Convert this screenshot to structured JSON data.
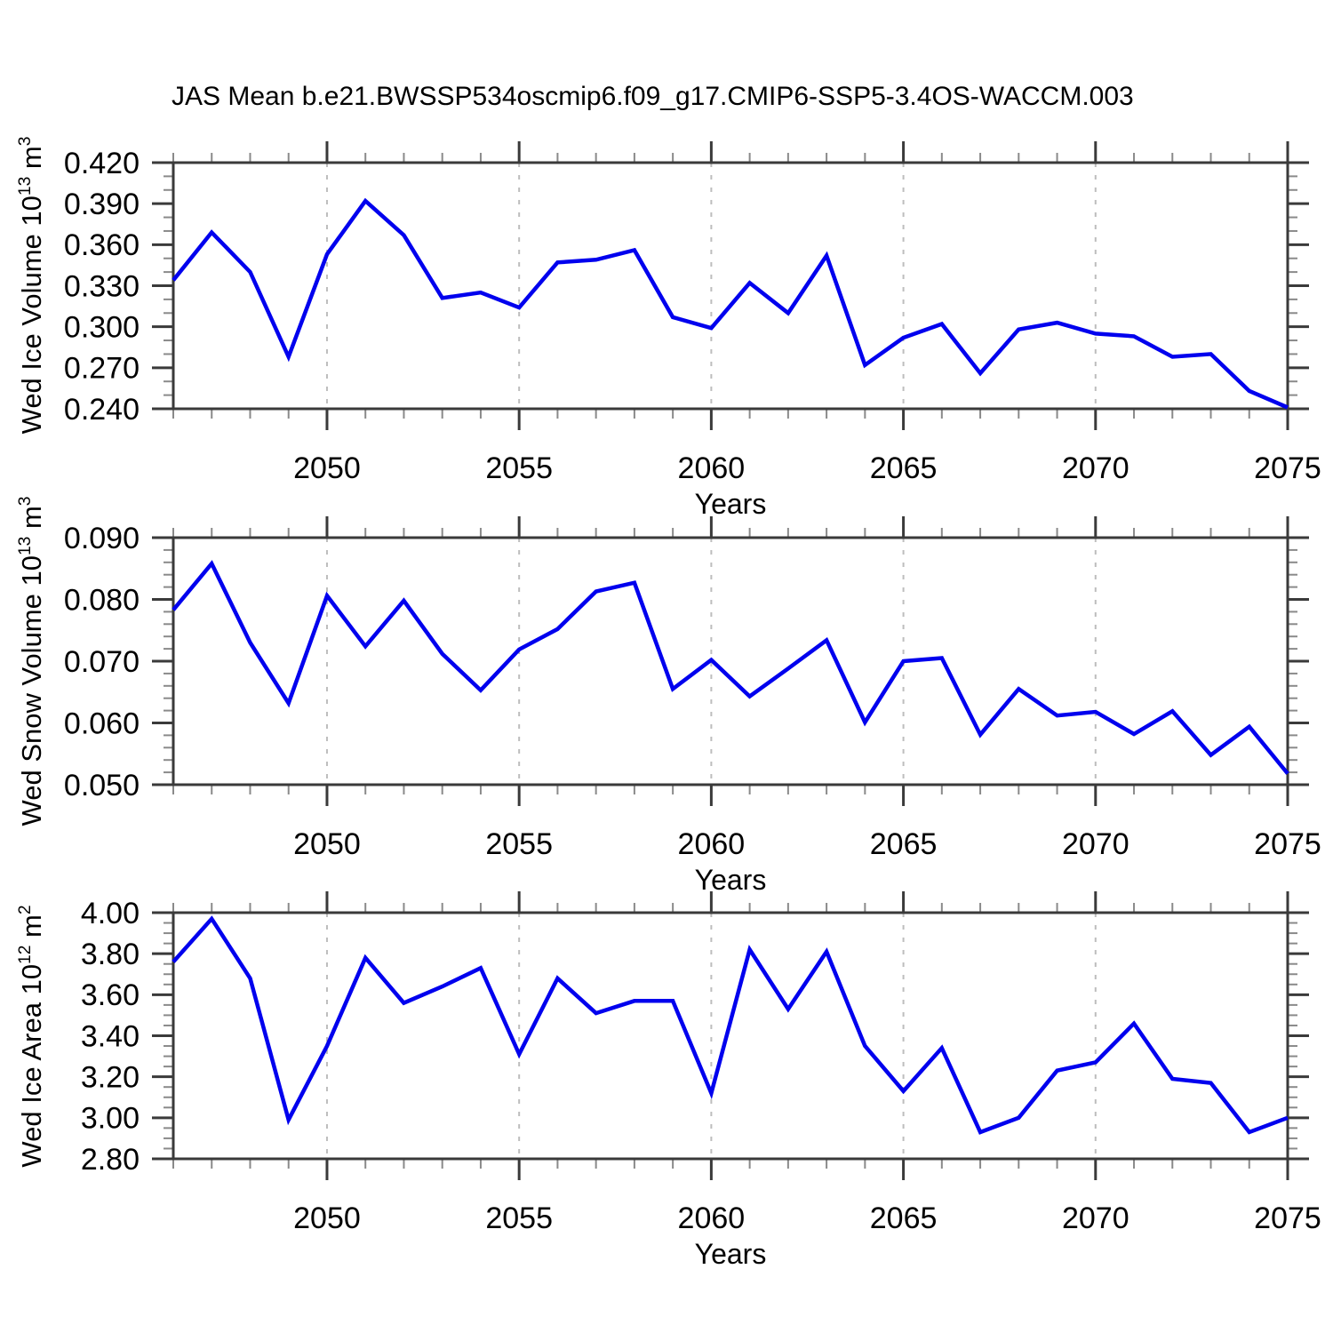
{
  "title": "JAS Mean b.e21.BWSSP534oscmip6.f09_g17.CMIP6-SSP5-3.4OS-WACCM.003",
  "colors": {
    "line": "#0000ee",
    "grid": "#bdbdbd",
    "axis": "#3a3a3a",
    "minor_tick": "#8a8a8a",
    "text": "#000000",
    "background": "#ffffff"
  },
  "chart_data": [
    {
      "type": "line",
      "panel": "ice-volume",
      "ylabel_text": "Wed Ice Volume 10^13 m^3",
      "ylabel_segments": [
        {
          "t": "Wed Ice Volume 10"
        },
        {
          "t": "13",
          "sup": true
        },
        {
          "t": " m"
        },
        {
          "t": "3",
          "sup": true
        }
      ],
      "xlabel": "Years",
      "x_range": [
        2046,
        2075
      ],
      "x": [
        2046,
        2047,
        2048,
        2049,
        2050,
        2051,
        2052,
        2053,
        2054,
        2055,
        2056,
        2057,
        2058,
        2059,
        2060,
        2061,
        2062,
        2063,
        2064,
        2065,
        2066,
        2067,
        2068,
        2069,
        2070,
        2071,
        2072,
        2073,
        2074,
        2075
      ],
      "values": [
        0.334,
        0.369,
        0.34,
        0.278,
        0.353,
        0.392,
        0.367,
        0.321,
        0.325,
        0.314,
        0.347,
        0.349,
        0.356,
        0.307,
        0.299,
        0.332,
        0.31,
        0.352,
        0.272,
        0.292,
        0.302,
        0.266,
        0.298,
        0.303,
        0.295,
        0.293,
        0.278,
        0.28,
        0.253,
        0.241
      ],
      "ylim": [
        0.24,
        0.42
      ],
      "yticks": [
        0.24,
        0.27,
        0.3,
        0.33,
        0.36,
        0.39,
        0.42
      ],
      "ytick_labels": [
        "0.240",
        "0.270",
        "0.300",
        "0.330",
        "0.360",
        "0.390",
        "0.420"
      ],
      "y_minor_step": 0.01,
      "xticks": [
        2050,
        2055,
        2060,
        2065,
        2070,
        2075
      ],
      "xtick_labels": [
        "2050",
        "2055",
        "2060",
        "2065",
        "2070",
        "2075"
      ],
      "grid_x": [
        2050,
        2055,
        2060,
        2065,
        2070
      ],
      "grid": "vertical-dashed",
      "legend": "none"
    },
    {
      "type": "line",
      "panel": "snow-volume",
      "ylabel_text": "Wed Snow Volume 10^13 m^3",
      "ylabel_segments": [
        {
          "t": "Wed Snow Volume 10"
        },
        {
          "t": "13",
          "sup": true
        },
        {
          "t": " m"
        },
        {
          "t": "3",
          "sup": true
        }
      ],
      "xlabel": "Years",
      "x_range": [
        2046,
        2075
      ],
      "x": [
        2046,
        2047,
        2048,
        2049,
        2050,
        2051,
        2052,
        2053,
        2054,
        2055,
        2056,
        2057,
        2058,
        2059,
        2060,
        2061,
        2062,
        2063,
        2064,
        2065,
        2066,
        2067,
        2068,
        2069,
        2070,
        2071,
        2072,
        2073,
        2074,
        2075
      ],
      "values": [
        0.0783,
        0.0858,
        0.073,
        0.0632,
        0.0806,
        0.0724,
        0.0798,
        0.0712,
        0.0653,
        0.0719,
        0.0752,
        0.0813,
        0.0827,
        0.0655,
        0.0702,
        0.0643,
        0.0688,
        0.0734,
        0.0601,
        0.07,
        0.0705,
        0.0581,
        0.0655,
        0.0612,
        0.0618,
        0.0582,
        0.0619,
        0.0548,
        0.0594,
        0.0518
      ],
      "ylim": [
        0.05,
        0.09
      ],
      "yticks": [
        0.05,
        0.06,
        0.07,
        0.08,
        0.09
      ],
      "ytick_labels": [
        "0.050",
        "0.060",
        "0.070",
        "0.080",
        "0.090"
      ],
      "y_minor_step": 0.002,
      "xticks": [
        2050,
        2055,
        2060,
        2065,
        2070,
        2075
      ],
      "xtick_labels": [
        "2050",
        "2055",
        "2060",
        "2065",
        "2070",
        "2075"
      ],
      "grid_x": [
        2050,
        2055,
        2060,
        2065,
        2070
      ],
      "grid": "vertical-dashed",
      "legend": "none"
    },
    {
      "type": "line",
      "panel": "ice-area",
      "ylabel_text": "Wed Ice Area 10^12 m^2",
      "ylabel_segments": [
        {
          "t": "Wed Ice Area 10"
        },
        {
          "t": "12",
          "sup": true
        },
        {
          "t": " m"
        },
        {
          "t": "2",
          "sup": true
        }
      ],
      "xlabel": "Years",
      "x_range": [
        2046,
        2075
      ],
      "x": [
        2046,
        2047,
        2048,
        2049,
        2050,
        2051,
        2052,
        2053,
        2054,
        2055,
        2056,
        2057,
        2058,
        2059,
        2060,
        2061,
        2062,
        2063,
        2064,
        2065,
        2066,
        2067,
        2068,
        2069,
        2070,
        2071,
        2072,
        2073,
        2074,
        2075
      ],
      "values": [
        3.76,
        3.97,
        3.68,
        2.99,
        3.35,
        3.78,
        3.56,
        3.64,
        3.73,
        3.31,
        3.68,
        3.51,
        3.57,
        3.57,
        3.12,
        3.82,
        3.53,
        3.81,
        3.35,
        3.13,
        3.34,
        2.93,
        3.0,
        3.23,
        3.27,
        3.46,
        3.19,
        3.17,
        2.93,
        3.0
      ],
      "ylim": [
        2.8,
        4.0
      ],
      "yticks": [
        2.8,
        3.0,
        3.2,
        3.4,
        3.6,
        3.8,
        4.0
      ],
      "ytick_labels": [
        "2.80",
        "3.00",
        "3.20",
        "3.40",
        "3.60",
        "3.80",
        "4.00"
      ],
      "y_minor_step": 0.05,
      "xticks": [
        2050,
        2055,
        2060,
        2065,
        2070,
        2075
      ],
      "xtick_labels": [
        "2050",
        "2055",
        "2060",
        "2065",
        "2070",
        "2075"
      ],
      "grid_x": [
        2050,
        2055,
        2060,
        2065,
        2070
      ],
      "grid": "vertical-dashed",
      "legend": "none"
    }
  ]
}
